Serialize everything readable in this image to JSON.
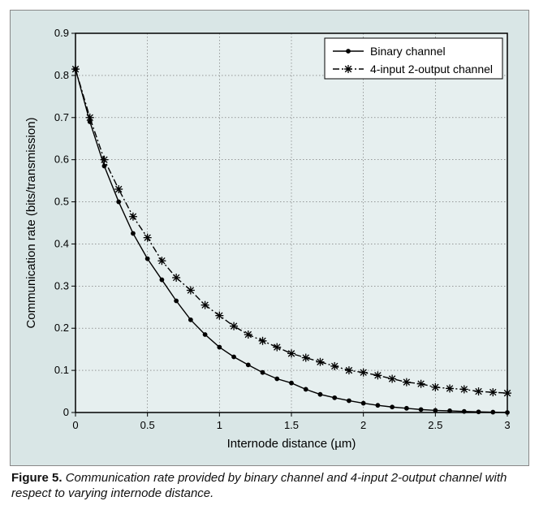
{
  "caption": {
    "label": "Figure 5.",
    "text": "Communication rate provided by binary channel and 4-input 2-output channel with respect to varying internode distance."
  },
  "chart": {
    "type": "line",
    "outer_background": "#d9e6e6",
    "plot_background": "#e6efef",
    "axis_color": "#000000",
    "grid_color": "#666666",
    "grid_dash": "1.5 2.5",
    "xlim": [
      0,
      3
    ],
    "ylim": [
      0,
      0.9
    ],
    "xtick_step": 0.5,
    "ytick_step": 0.1,
    "xlabel": "Internode distance (µm)",
    "ylabel": "Communication rate (bits/transmission)",
    "label_fontsize": 15,
    "tick_fontsize": 13,
    "legend": {
      "position": "top-right",
      "background": "#ffffff",
      "border": "#000000",
      "fontsize": 14
    },
    "series": [
      {
        "name": "Binary channel",
        "legend": "Binary channel",
        "color": "#000000",
        "line_width": 1.4,
        "line_style": "solid",
        "marker": "circle",
        "marker_size": 3.8,
        "marker_fill": "#000000",
        "x": [
          0,
          0.1,
          0.2,
          0.3,
          0.4,
          0.5,
          0.6,
          0.7,
          0.8,
          0.9,
          1.0,
          1.1,
          1.2,
          1.3,
          1.4,
          1.5,
          1.6,
          1.7,
          1.8,
          1.9,
          2.0,
          2.1,
          2.2,
          2.3,
          2.4,
          2.5,
          2.6,
          2.7,
          2.8,
          2.9,
          3.0
        ],
        "y": [
          0.815,
          0.69,
          0.585,
          0.5,
          0.425,
          0.365,
          0.315,
          0.265,
          0.22,
          0.185,
          0.155,
          0.132,
          0.113,
          0.095,
          0.08,
          0.07,
          0.055,
          0.043,
          0.035,
          0.028,
          0.022,
          0.017,
          0.013,
          0.01,
          0.007,
          0.005,
          0.004,
          0.0025,
          0.0015,
          0.0008,
          0.0
        ]
      },
      {
        "name": "4-input 2-output channel",
        "legend": "4-input 2-output channel",
        "color": "#000000",
        "line_width": 1.4,
        "line_style": "dash-dot",
        "dash_array": "8 3 2 3",
        "marker": "asterisk",
        "marker_size": 5,
        "marker_stroke": "#000000",
        "x": [
          0,
          0.1,
          0.2,
          0.3,
          0.4,
          0.5,
          0.6,
          0.7,
          0.8,
          0.9,
          1.0,
          1.1,
          1.2,
          1.3,
          1.4,
          1.5,
          1.6,
          1.7,
          1.8,
          1.9,
          2.0,
          2.1,
          2.2,
          2.3,
          2.4,
          2.5,
          2.6,
          2.7,
          2.8,
          2.9,
          3.0
        ],
        "y": [
          0.815,
          0.7,
          0.6,
          0.53,
          0.465,
          0.415,
          0.36,
          0.32,
          0.29,
          0.255,
          0.23,
          0.205,
          0.185,
          0.17,
          0.155,
          0.14,
          0.13,
          0.12,
          0.11,
          0.1,
          0.095,
          0.088,
          0.08,
          0.072,
          0.068,
          0.06,
          0.057,
          0.055,
          0.05,
          0.048,
          0.046
        ]
      }
    ]
  }
}
